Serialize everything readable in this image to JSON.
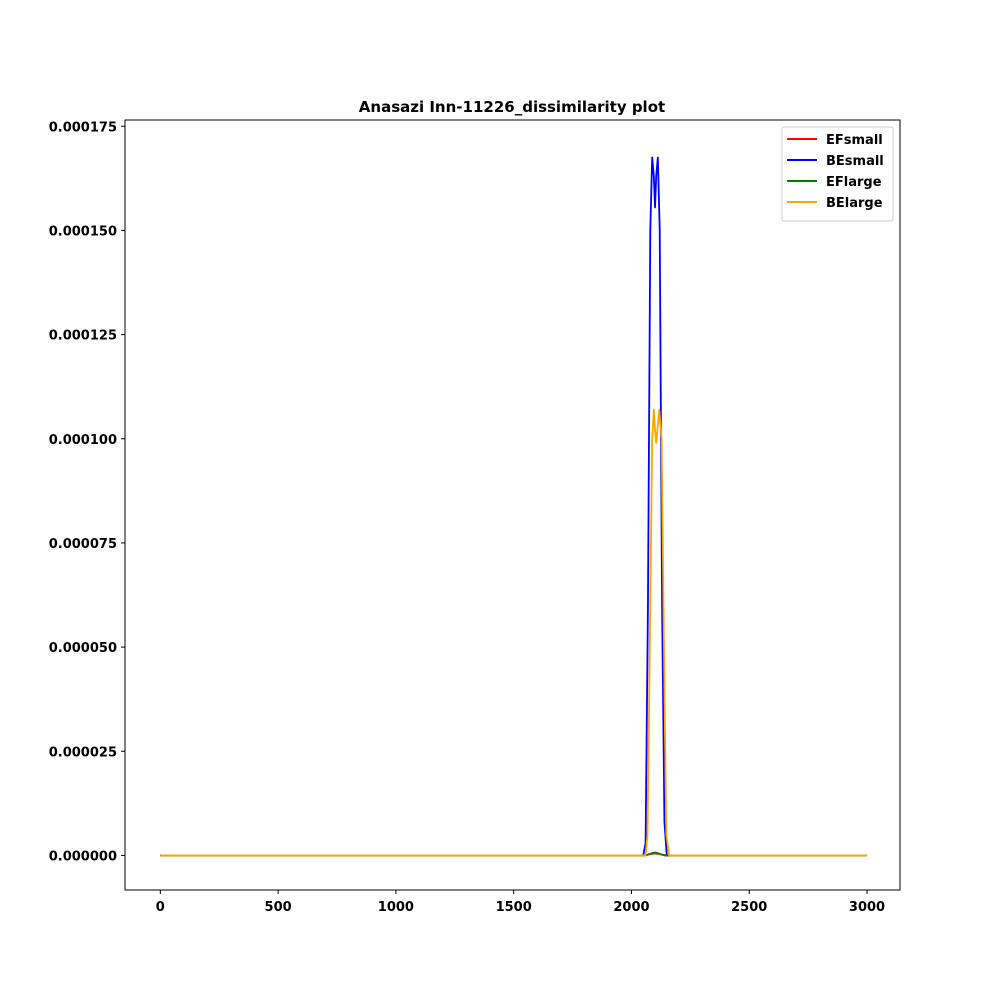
{
  "chart_data": {
    "type": "line",
    "title": "Anasazi Inn-11226_dissimilarity plot",
    "xlabel": "",
    "ylabel": "",
    "xlim": [
      -150,
      3140
    ],
    "ylim": [
      -8.3e-06,
      0.0001765
    ],
    "x_ticks": [
      0,
      500,
      1000,
      1500,
      2000,
      2500,
      3000
    ],
    "x_tick_labels": [
      "0",
      "500",
      "1000",
      "1500",
      "2000",
      "2500",
      "3000"
    ],
    "y_ticks": [
      0,
      2.5e-05,
      5e-05,
      7.5e-05,
      0.0001,
      0.000125,
      0.00015,
      0.000175
    ],
    "y_tick_labels": [
      "0.000000",
      "0.000025",
      "0.000050",
      "0.000075",
      "0.000100",
      "0.000125",
      "0.000150",
      "0.000175"
    ],
    "grid": false,
    "legend_position": "top-right",
    "series": [
      {
        "name": "EFsmall",
        "color": "#ff0000",
        "x": [
          0,
          2000,
          2060,
          2080,
          2100,
          2120,
          2140,
          2160,
          3000
        ],
        "y": [
          0,
          0,
          0,
          3e-07,
          5e-07,
          3e-07,
          0,
          0,
          0
        ]
      },
      {
        "name": "BEsmall",
        "color": "#0000ff",
        "x": [
          0,
          2000,
          2050,
          2060,
          2070,
          2080,
          2088,
          2095,
          2100,
          2105,
          2112,
          2120,
          2130,
          2140,
          2150,
          2160,
          3000
        ],
        "y": [
          0,
          0,
          0,
          3e-06,
          6e-05,
          0.00015,
          0.0001675,
          0.000163,
          0.0001555,
          0.000163,
          0.0001675,
          0.00015,
          6e-05,
          8e-06,
          0,
          0,
          0
        ]
      },
      {
        "name": "EFlarge",
        "color": "#008000",
        "x": [
          0,
          2050,
          2070,
          2090,
          2100,
          2110,
          2130,
          2150,
          3000
        ],
        "y": [
          0,
          0,
          2e-07,
          6e-07,
          7e-07,
          6e-07,
          2e-07,
          0,
          0
        ]
      },
      {
        "name": "BElarge",
        "color": "#ffa500",
        "x": [
          0,
          2000,
          2060,
          2068,
          2078,
          2088,
          2095,
          2100,
          2105,
          2110,
          2118,
          2128,
          2138,
          2148,
          2160,
          3000
        ],
        "y": [
          0,
          0,
          0,
          5e-06,
          5e-05,
          0.0001,
          0.000107,
          0.000102,
          9.9e-05,
          0.000102,
          0.000107,
          0.0001,
          5e-05,
          5e-06,
          0,
          0
        ]
      }
    ]
  }
}
